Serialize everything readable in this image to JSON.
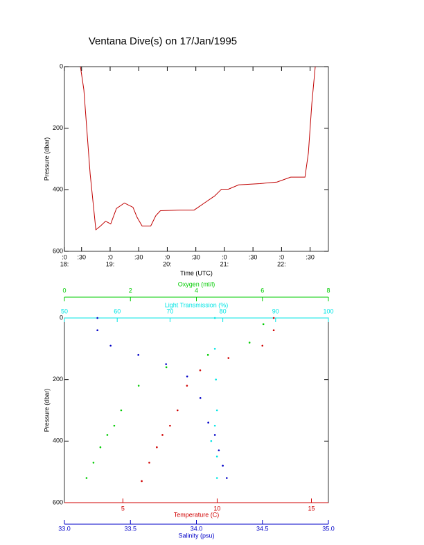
{
  "chart_data": [
    {
      "type": "line",
      "title": "Ventana Dive(s) on 17/Jan/1995",
      "xlabel": "Time (UTC)",
      "ylabel": "Pressure (dbar)",
      "x": [
        18.48,
        18.54,
        18.65,
        18.75,
        18.83,
        18.92,
        19.01,
        19.11,
        19.25,
        19.4,
        19.47,
        19.56,
        19.71,
        19.8,
        19.88,
        20.22,
        20.47,
        20.65,
        20.83,
        20.95,
        21.07,
        21.25,
        21.62,
        21.92,
        22.16,
        22.41,
        22.47,
        22.53,
        22.59
      ],
      "series": [
        {
          "color": "#c00000",
          "values": [
            0,
            75,
            348,
            530,
            518,
            502,
            511,
            461,
            443,
            457,
            489,
            518,
            518,
            484,
            468,
            466,
            466,
            443,
            420,
            398,
            398,
            384,
            380,
            375,
            359,
            359,
            280,
            120,
            0
          ]
        }
      ],
      "xlim": [
        18.2,
        22.82
      ],
      "xticks": [
        {
          "value": 18.2,
          "label": ":0"
        },
        {
          "value": 18.5,
          "label": ":30"
        },
        {
          "value": 19,
          "label": ":0"
        },
        {
          "value": 19.5,
          "label": ":30"
        },
        {
          "value": 20,
          "label": ":0"
        },
        {
          "value": 20.5,
          "label": ":30"
        },
        {
          "value": 21,
          "label": ":0"
        },
        {
          "value": 21.5,
          "label": ":30"
        },
        {
          "value": 22,
          "label": ":0"
        },
        {
          "value": 22.5,
          "label": ":30"
        }
      ],
      "xticks_hours": [
        {
          "value": 18.2,
          "label": "18:"
        },
        {
          "value": 19,
          "label": "19:"
        },
        {
          "value": 20,
          "label": "20:"
        },
        {
          "value": 21,
          "label": "21:"
        },
        {
          "value": 22,
          "label": "22:"
        }
      ],
      "ylim": [
        0,
        600
      ],
      "yticks": [
        0,
        200,
        400,
        600
      ],
      "y_inverted": true
    },
    {
      "type": "scatter",
      "ylabel": "Pressure (dbar)",
      "ylim": [
        0,
        600
      ],
      "yticks": [
        0,
        200,
        400,
        600
      ],
      "y_inverted": true,
      "x_axes": [
        {
          "label": "Oxygen (ml/l)",
          "color": "#00cc00",
          "lim": [
            0,
            8
          ],
          "ticks": [
            0,
            2,
            4,
            6,
            8
          ]
        },
        {
          "label": "Light Transmission (%)",
          "color": "#00e5e5",
          "lim": [
            50,
            100
          ],
          "ticks": [
            50,
            60,
            70,
            80,
            90,
            100
          ]
        },
        {
          "label": "Temperature (C)",
          "color": "#d00000",
          "lim": [
            1.9,
            15.9
          ],
          "ticks": [
            5,
            10,
            15
          ]
        },
        {
          "label": "Salinity (psu)",
          "color": "#0000c8",
          "lim": [
            33,
            35
          ],
          "ticks": [
            {
              "value": 33,
              "label": "33.0"
            },
            33.5,
            {
              "value": 34,
              "label": "34.0"
            },
            34.5,
            {
              "value": 35,
              "label": "35.0"
            }
          ]
        }
      ],
      "series": [
        {
          "x_axis": 0,
          "color": "#00cc00",
          "x": [
            6.03,
            5.61,
            4.35,
            3.09,
            2.25,
            1.72,
            1.51,
            1.3,
            1.09,
            0.88,
            0.67
          ],
          "values": [
            20,
            80,
            120,
            160,
            220,
            300,
            350,
            380,
            420,
            470,
            520
          ]
        },
        {
          "x_axis": 1,
          "color": "#00e5e5",
          "x": [
            78.5,
            78.5,
            78.7,
            78.9,
            78.5,
            77.8,
            78.9,
            78.9
          ],
          "values": [
            0,
            100,
            200,
            300,
            350,
            400,
            450,
            520
          ]
        },
        {
          "x_axis": 2,
          "color": "#d00000",
          "x": [
            13,
            13,
            12.4,
            10.6,
            9.1,
            8.4,
            7.9,
            7.5,
            7.1,
            6.8,
            6.4,
            6
          ],
          "values": [
            0,
            40,
            90,
            130,
            170,
            220,
            300,
            350,
            380,
            420,
            470,
            530
          ]
        },
        {
          "x_axis": 3,
          "color": "#0000c8",
          "x": [
            33.25,
            33.25,
            33.35,
            33.56,
            33.77,
            33.93,
            34.03,
            34.09,
            34.14,
            34.17,
            34.2,
            34.23
          ],
          "values": [
            0,
            40,
            90,
            120,
            150,
            190,
            260,
            340,
            380,
            430,
            480,
            520
          ]
        }
      ]
    }
  ]
}
